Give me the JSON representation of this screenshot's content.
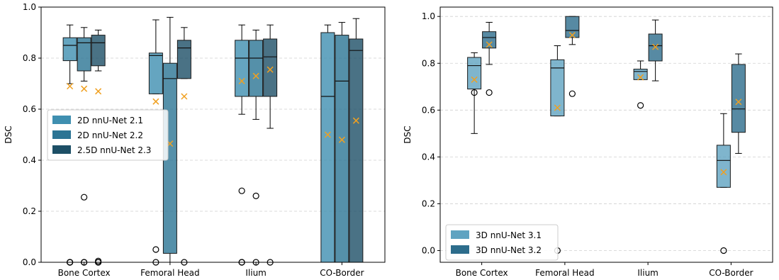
{
  "chart_data": [
    {
      "type": "box",
      "ylabel": "DSC",
      "ylim": [
        0.0,
        1.0
      ],
      "yticks": [
        0.0,
        0.2,
        0.4,
        0.6,
        0.8,
        1.0
      ],
      "ytick_labels": [
        "0.0",
        "0.2",
        "0.4",
        "0.6",
        "0.8",
        "1.0"
      ],
      "grid": "horizontal dashed",
      "legend_position": "center-left",
      "categories": [
        "Bone Cortex",
        "Femoral Head",
        "Ilium",
        "CO-Border"
      ],
      "series": [
        {
          "name": "2D nnU-Net 2.1",
          "color": "#3f8fb0",
          "boxes": [
            {
              "whislo": 0.7,
              "q1": 0.79,
              "med": 0.85,
              "q3": 0.88,
              "whishi": 0.93,
              "mean": 0.69,
              "fliers": [
                0.0,
                0.0,
                0.0
              ]
            },
            {
              "whislo": 0.66,
              "q1": 0.66,
              "med": 0.81,
              "q3": 0.82,
              "whishi": 0.95,
              "mean": 0.63,
              "fliers": [
                0.05,
                0.0
              ]
            },
            {
              "whislo": 0.58,
              "q1": 0.65,
              "med": 0.8,
              "q3": 0.87,
              "whishi": 0.93,
              "mean": 0.71,
              "fliers": [
                0.28,
                0.0,
                0.0
              ]
            },
            {
              "whislo": 0.0,
              "q1": 0.0,
              "med": 0.65,
              "q3": 0.9,
              "whishi": 0.93,
              "mean": 0.5,
              "fliers": []
            }
          ]
        },
        {
          "name": "2D nnU-Net 2.2",
          "color": "#2b7494",
          "boxes": [
            {
              "whislo": 0.71,
              "q1": 0.75,
              "med": 0.86,
              "q3": 0.88,
              "whishi": 0.92,
              "mean": 0.68,
              "fliers": [
                0.255,
                0.0,
                0.0
              ]
            },
            {
              "whislo": 0.0,
              "q1": 0.035,
              "med": 0.72,
              "q3": 0.78,
              "whishi": 0.96,
              "mean": 0.465,
              "fliers": []
            },
            {
              "whislo": 0.56,
              "q1": 0.65,
              "med": 0.8,
              "q3": 0.87,
              "whishi": 0.91,
              "mean": 0.73,
              "fliers": [
                0.26,
                0.0
              ]
            },
            {
              "whislo": 0.0,
              "q1": 0.0,
              "med": 0.71,
              "q3": 0.89,
              "whishi": 0.94,
              "mean": 0.48,
              "fliers": []
            }
          ]
        },
        {
          "name": "2.5D nnU-Net 2.3",
          "color": "#1d4f66",
          "boxes": [
            {
              "whislo": 0.75,
              "q1": 0.77,
              "med": 0.86,
              "q3": 0.89,
              "whishi": 0.91,
              "mean": 0.67,
              "fliers": [
                0.0,
                0.0,
                0.005
              ]
            },
            {
              "whislo": 0.72,
              "q1": 0.72,
              "med": 0.84,
              "q3": 0.87,
              "whishi": 0.92,
              "mean": 0.65,
              "fliers": [
                0.0
              ]
            },
            {
              "whislo": 0.525,
              "q1": 0.65,
              "med": 0.805,
              "q3": 0.875,
              "whishi": 0.93,
              "mean": 0.755,
              "fliers": [
                0.0
              ]
            },
            {
              "whislo": 0.0,
              "q1": 0.0,
              "med": 0.83,
              "q3": 0.875,
              "whishi": 0.955,
              "mean": 0.555,
              "fliers": []
            }
          ]
        }
      ]
    },
    {
      "type": "box",
      "ylabel": "DSC",
      "ylim": [
        -0.05,
        1.04
      ],
      "yticks": [
        0.0,
        0.2,
        0.4,
        0.6,
        0.8,
        1.0
      ],
      "ytick_labels": [
        "0.0",
        "0.2",
        "0.4",
        "0.6",
        "0.8",
        "1.0"
      ],
      "grid": "horizontal dashed",
      "legend_position": "bottom-left",
      "categories": [
        "Bone Cortex",
        "Femoral Head",
        "Ilium",
        "CO-Border"
      ],
      "series": [
        {
          "name": "3D nnU-Net 3.1",
          "color": "#5fa3c1",
          "boxes": [
            {
              "whislo": 0.5,
              "q1": 0.69,
              "med": 0.79,
              "q3": 0.825,
              "whishi": 0.845,
              "mean": 0.73,
              "fliers": [
                0.675
              ]
            },
            {
              "whislo": 0.575,
              "q1": 0.575,
              "med": 0.78,
              "q3": 0.815,
              "whishi": 0.875,
              "mean": 0.61,
              "fliers": [
                0.0
              ]
            },
            {
              "whislo": 0.73,
              "q1": 0.73,
              "med": 0.765,
              "q3": 0.775,
              "whishi": 0.81,
              "mean": 0.74,
              "fliers": [
                0.62
              ]
            },
            {
              "whislo": 0.27,
              "q1": 0.27,
              "med": 0.385,
              "q3": 0.45,
              "whishi": 0.585,
              "mean": 0.335,
              "fliers": [
                0.0
              ]
            }
          ]
        },
        {
          "name": "3D nnU-Net 3.2",
          "color": "#2d6d8c",
          "boxes": [
            {
              "whislo": 0.795,
              "q1": 0.865,
              "med": 0.91,
              "q3": 0.935,
              "whishi": 0.975,
              "mean": 0.88,
              "fliers": [
                0.675
              ]
            },
            {
              "whislo": 0.88,
              "q1": 0.91,
              "med": 0.94,
              "q3": 1.0,
              "whishi": 1.0,
              "mean": 0.92,
              "fliers": [
                0.67
              ]
            },
            {
              "whislo": 0.725,
              "q1": 0.81,
              "med": 0.875,
              "q3": 0.925,
              "whishi": 0.985,
              "mean": 0.87,
              "fliers": []
            },
            {
              "whislo": 0.415,
              "q1": 0.505,
              "med": 0.605,
              "q3": 0.795,
              "whishi": 0.84,
              "mean": 0.635,
              "fliers": []
            }
          ]
        }
      ]
    }
  ]
}
